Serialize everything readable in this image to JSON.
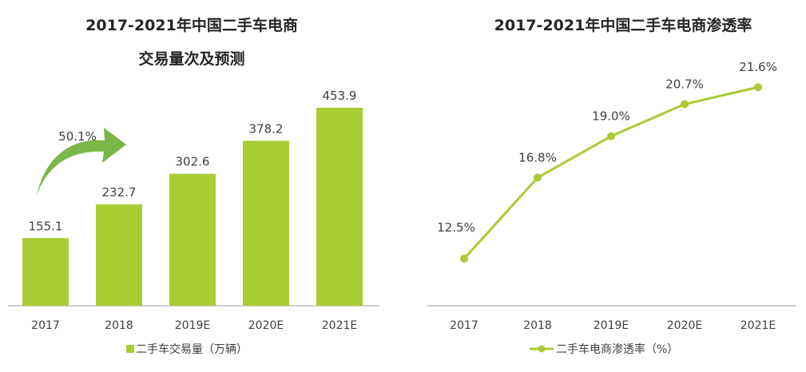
{
  "chart_data": [
    {
      "type": "bar",
      "title": "2017-2021年中国二手车电商",
      "title_line2": "交易量次及预测",
      "categories": [
        "2017",
        "2018",
        "2019E",
        "2020E",
        "2021E"
      ],
      "series": [
        {
          "name": "二手车交易量（万辆）",
          "values": [
            155.1,
            232.7,
            302.6,
            378.2,
            453.9
          ]
        }
      ],
      "value_labels": [
        "155.1",
        "232.7",
        "302.6",
        "378.2",
        "453.9"
      ],
      "annotation": "50.1%",
      "ylim": [
        0,
        460
      ],
      "legend": "bottom",
      "color": "#a9cc35"
    },
    {
      "type": "line",
      "title": "2017-2021年中国二手车电商渗透率",
      "categories": [
        "2017",
        "2018",
        "2019E",
        "2020E",
        "2021E"
      ],
      "series": [
        {
          "name": "二手车电商渗透率（%）",
          "values": [
            12.5,
            16.8,
            19.0,
            20.7,
            21.6
          ]
        }
      ],
      "value_labels": [
        "12.5%",
        "16.8%",
        "19.0%",
        "20.7%",
        "21.6%"
      ],
      "ylim": [
        10,
        22
      ],
      "legend": "bottom",
      "color": "#a9cc35"
    }
  ]
}
